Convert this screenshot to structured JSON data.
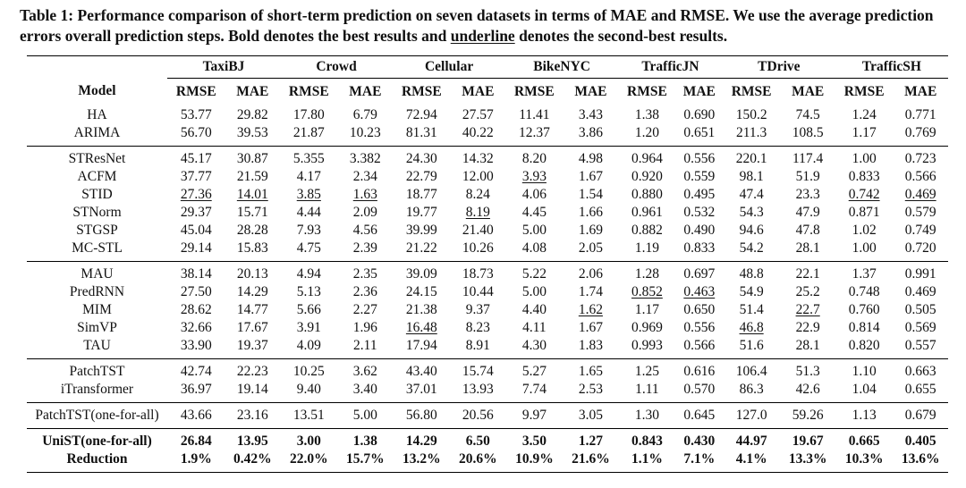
{
  "caption": {
    "prefix": "Table 1: Performance comparison of short-term prediction on seven datasets in terms of MAE and RMSE. We use the average prediction errors overall prediction steps. Bold denotes the best results and ",
    "underline_word": "underline",
    "suffix": " denotes the second-best results."
  },
  "header": {
    "model_label": "Model",
    "datasets": [
      "TaxiBJ",
      "Crowd",
      "Cellular",
      "BikeNYC",
      "TrafficJN",
      "TDrive",
      "TrafficSH"
    ],
    "metrics": [
      "RMSE",
      "MAE"
    ]
  },
  "sections": [
    [
      {
        "model": "HA",
        "values": [
          "53.77",
          "29.82",
          "17.80",
          "6.79",
          "72.94",
          "27.57",
          "11.41",
          "3.43",
          "1.38",
          "0.690",
          "150.2",
          "74.5",
          "1.24",
          "0.771"
        ]
      },
      {
        "model": "ARIMA",
        "values": [
          "56.70",
          "39.53",
          "21.87",
          "10.23",
          "81.31",
          "40.22",
          "12.37",
          "3.86",
          "1.20",
          "0.651",
          "211.3",
          "108.5",
          "1.17",
          "0.769"
        ]
      }
    ],
    [
      {
        "model": "STResNet",
        "values": [
          "45.17",
          "30.87",
          "5.355",
          "3.382",
          "24.30",
          "14.32",
          "8.20",
          "4.98",
          "0.964",
          "0.556",
          "220.1",
          "117.4",
          "1.00",
          "0.723"
        ]
      },
      {
        "model": "ACFM",
        "values": [
          "37.77",
          "21.59",
          "4.17",
          "2.34",
          "22.79",
          "12.00",
          "3.93",
          "1.67",
          "0.920",
          "0.559",
          "98.1",
          "51.9",
          "0.833",
          "0.566"
        ]
      },
      {
        "model": "STID",
        "values": [
          "27.36",
          "14.01",
          "3.85",
          "1.63",
          "18.77",
          "8.24",
          "4.06",
          "1.54",
          "0.880",
          "0.495",
          "47.4",
          "23.3",
          "0.742",
          "0.469"
        ]
      },
      {
        "model": "STNorm",
        "values": [
          "29.37",
          "15.71",
          "4.44",
          "2.09",
          "19.77",
          "8.19",
          "4.45",
          "1.66",
          "0.961",
          "0.532",
          "54.3",
          "47.9",
          "0.871",
          "0.579"
        ]
      },
      {
        "model": "STGSP",
        "values": [
          "45.04",
          "28.28",
          "7.93",
          "4.56",
          "39.99",
          "21.40",
          "5.00",
          "1.69",
          "0.882",
          "0.490",
          "94.6",
          "47.8",
          "1.02",
          "0.749"
        ]
      },
      {
        "model": "MC-STL",
        "values": [
          "29.14",
          "15.83",
          "4.75",
          "2.39",
          "21.22",
          "10.26",
          "4.08",
          "2.05",
          "1.19",
          "0.833",
          "54.2",
          "28.1",
          "1.00",
          "0.720"
        ]
      }
    ],
    [
      {
        "model": "MAU",
        "values": [
          "38.14",
          "20.13",
          "4.94",
          "2.35",
          "39.09",
          "18.73",
          "5.22",
          "2.06",
          "1.28",
          "0.697",
          "48.8",
          "22.1",
          "1.37",
          "0.991"
        ]
      },
      {
        "model": "PredRNN",
        "values": [
          "27.50",
          "14.29",
          "5.13",
          "2.36",
          "24.15",
          "10.44",
          "5.00",
          "1.74",
          "0.852",
          "0.463",
          "54.9",
          "25.2",
          "0.748",
          "0.469"
        ]
      },
      {
        "model": "MIM",
        "values": [
          "28.62",
          "14.77",
          "5.66",
          "2.27",
          "21.38",
          "9.37",
          "4.40",
          "1.62",
          "1.17",
          "0.650",
          "51.4",
          "22.7",
          "0.760",
          "0.505"
        ]
      },
      {
        "model": "SimVP",
        "values": [
          "32.66",
          "17.67",
          "3.91",
          "1.96",
          "16.48",
          "8.23",
          "4.11",
          "1.67",
          "0.969",
          "0.556",
          "46.8",
          "22.9",
          "0.814",
          "0.569"
        ]
      },
      {
        "model": "TAU",
        "values": [
          "33.90",
          "19.37",
          "4.09",
          "2.11",
          "17.94",
          "8.91",
          "4.30",
          "1.83",
          "0.993",
          "0.566",
          "51.6",
          "28.1",
          "0.820",
          "0.557"
        ]
      }
    ],
    [
      {
        "model": "PatchTST",
        "values": [
          "42.74",
          "22.23",
          "10.25",
          "3.62",
          "43.40",
          "15.74",
          "5.27",
          "1.65",
          "1.25",
          "0.616",
          "106.4",
          "51.3",
          "1.10",
          "0.663"
        ]
      },
      {
        "model": "iTransformer",
        "values": [
          "36.97",
          "19.14",
          "9.40",
          "3.40",
          "37.01",
          "13.93",
          "7.74",
          "2.53",
          "1.11",
          "0.570",
          "86.3",
          "42.6",
          "1.04",
          "0.655"
        ]
      }
    ],
    [
      {
        "model": "PatchTST(one-for-all)",
        "values": [
          "43.66",
          "23.16",
          "13.51",
          "5.00",
          "56.80",
          "20.56",
          "9.97",
          "3.05",
          "1.30",
          "0.645",
          "127.0",
          "59.26",
          "1.13",
          "0.679"
        ]
      }
    ],
    [
      {
        "model": "UniST(one-for-all)",
        "values": [
          "26.84",
          "13.95",
          "3.00",
          "1.38",
          "14.29",
          "6.50",
          "3.50",
          "1.27",
          "0.843",
          "0.430",
          "44.97",
          "19.67",
          "0.665",
          "0.405"
        ]
      },
      {
        "model": "Reduction",
        "values": [
          "1.9%",
          "0.42%",
          "22.0%",
          "15.7%",
          "13.2%",
          "20.6%",
          "10.9%",
          "21.6%",
          "1.1%",
          "7.1%",
          "4.1%",
          "13.3%",
          "10.3%",
          "13.6%"
        ]
      }
    ]
  ]
}
